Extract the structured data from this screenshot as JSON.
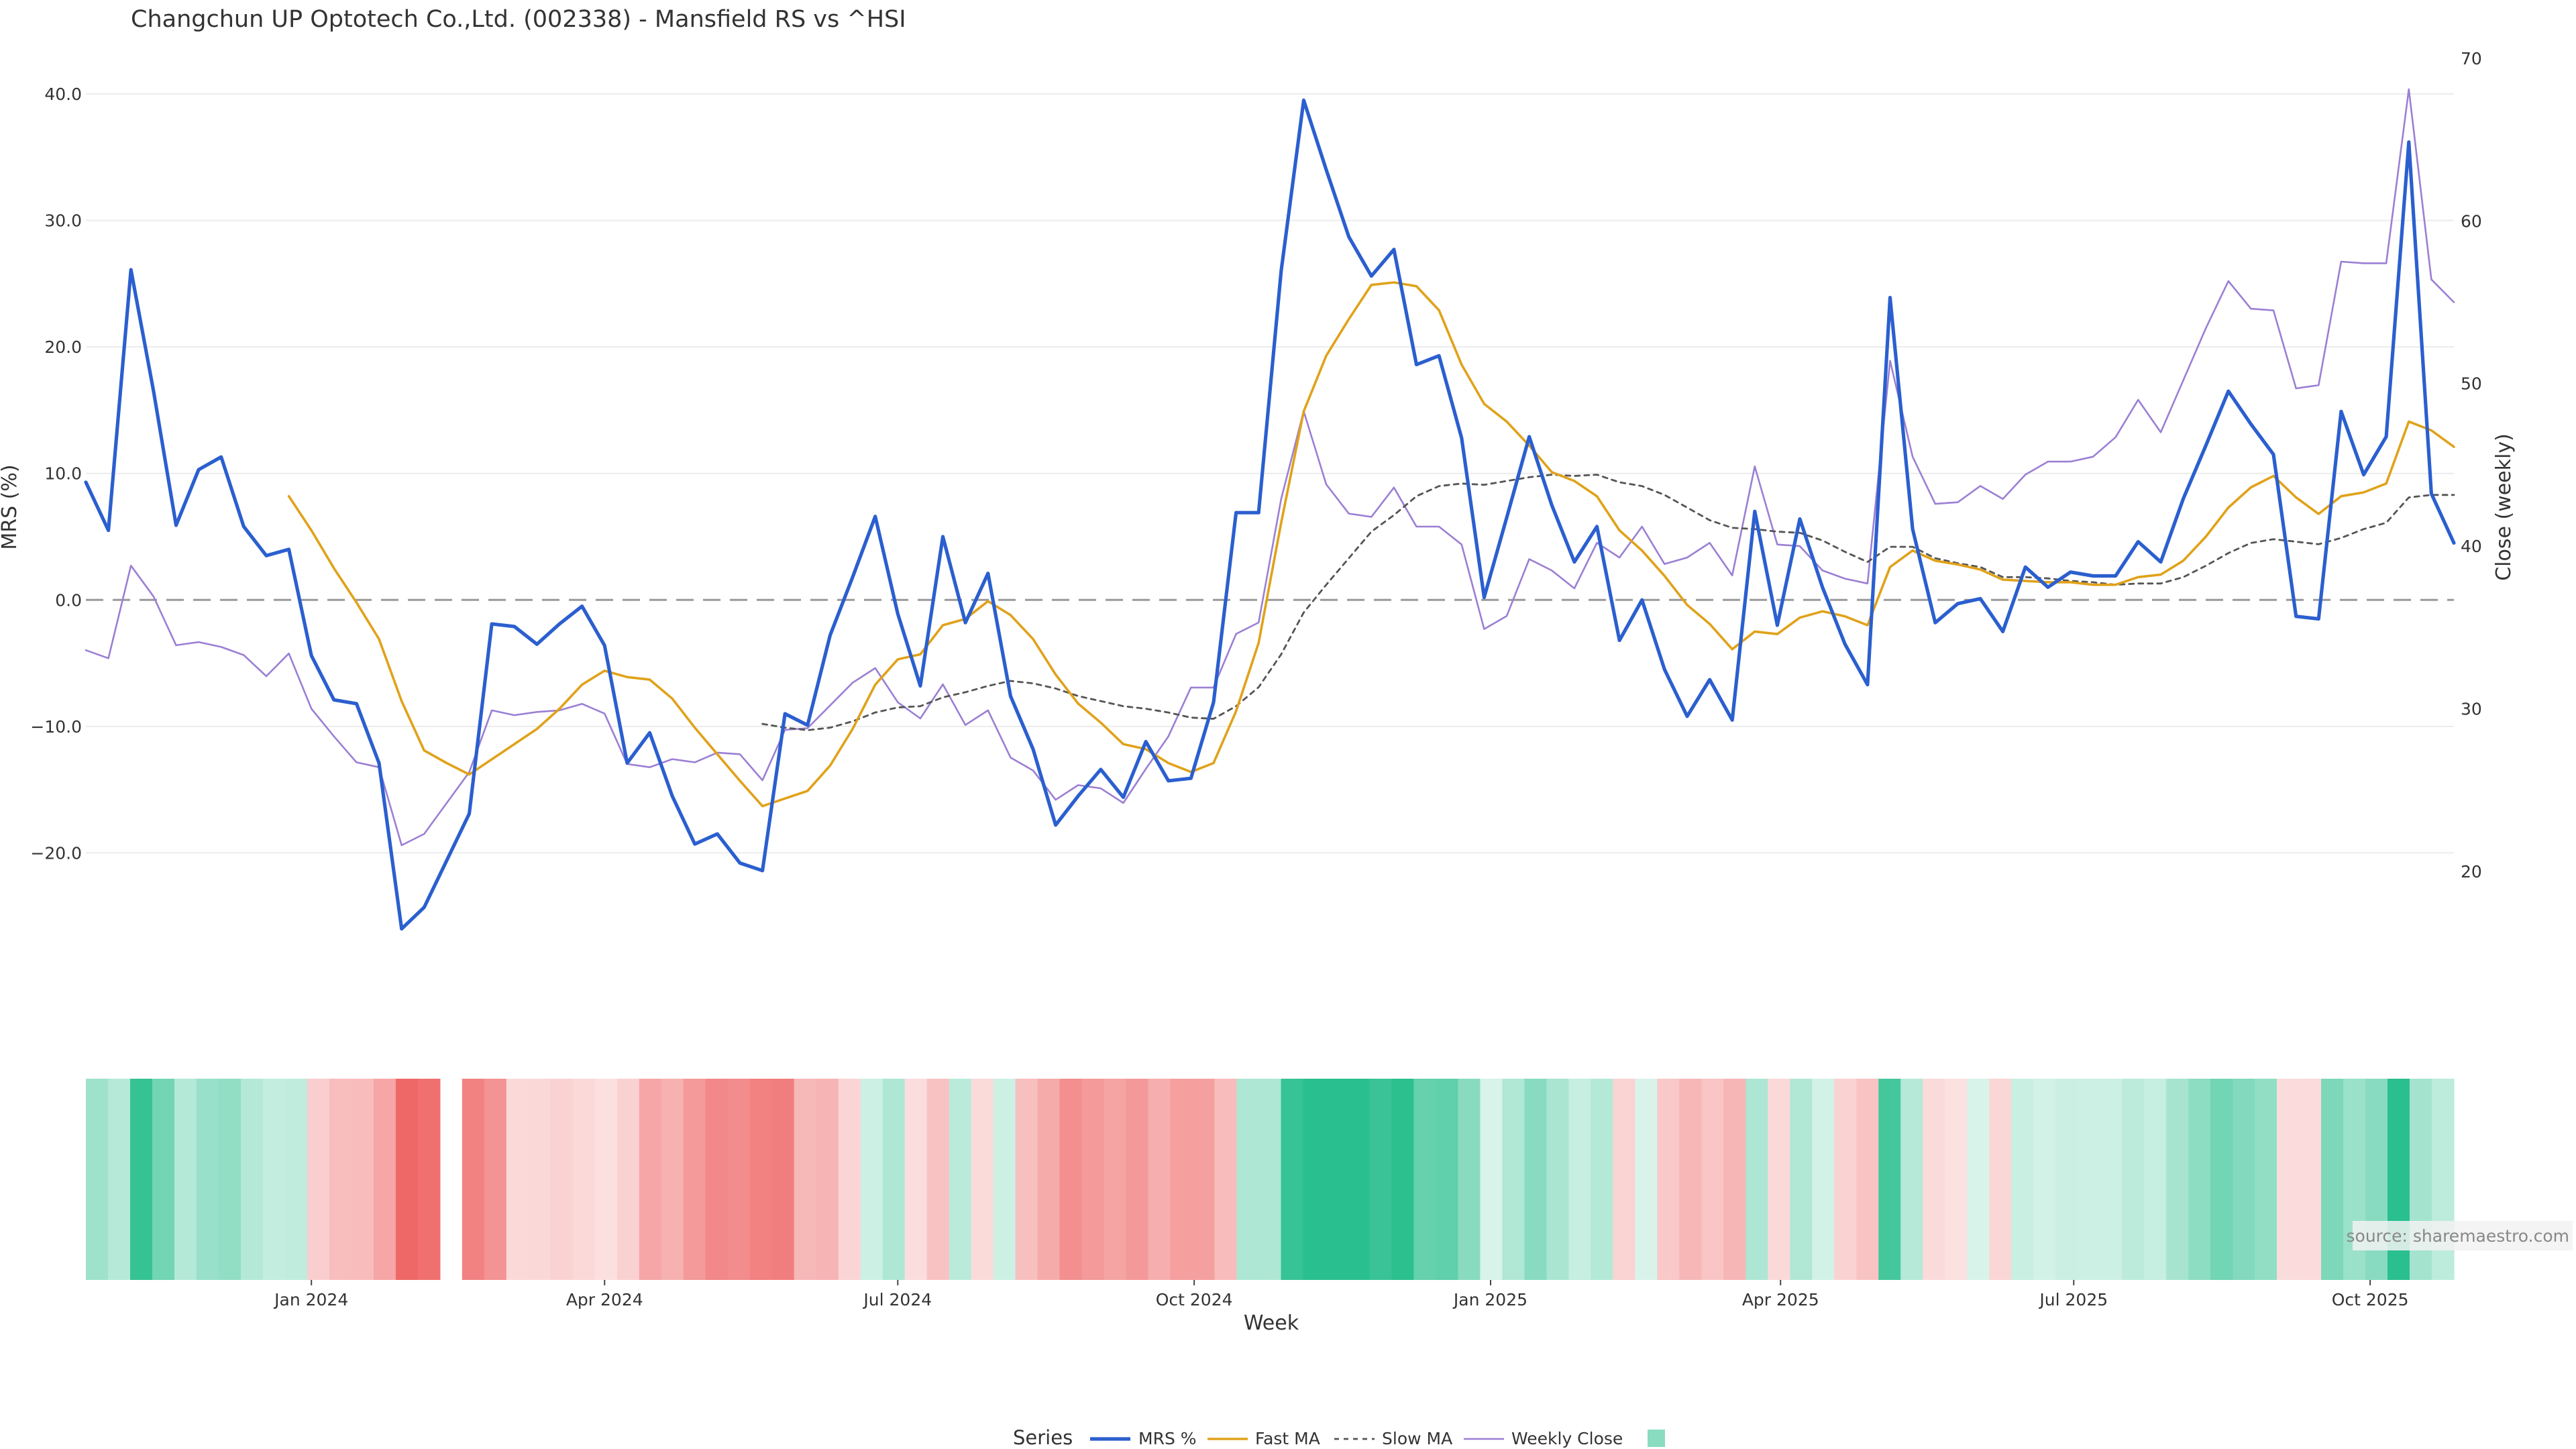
{
  "chart_data": {
    "type": "line",
    "title": "Changchun UP Optotech Co.,Ltd. (002338) - Mansfield RS vs ^HSI",
    "xlabel": "Week",
    "ylabel_left": "MRS (%)",
    "ylabel_right": "Close (weekly)",
    "source": "source: sharemaestro.com",
    "xlim": [
      "2023-10-23",
      "2025-10-27"
    ],
    "ylim_left": [
      -30,
      40
    ],
    "ylim_right": [
      15,
      70
    ],
    "left_ticks": [
      {
        "value": 40,
        "label": "40.0"
      },
      {
        "value": 30,
        "label": "30.0"
      },
      {
        "value": 20,
        "label": "20.0"
      },
      {
        "value": 10,
        "label": "10.0"
      },
      {
        "value": 0,
        "label": "0.0"
      },
      {
        "value": -10,
        "label": "−10.0"
      },
      {
        "value": -20,
        "label": "−20.0"
      }
    ],
    "right_ticks": [
      {
        "value": 70,
        "label": "70"
      },
      {
        "value": 60,
        "label": "60"
      },
      {
        "value": 50,
        "label": "50"
      },
      {
        "value": 40,
        "label": "40"
      },
      {
        "value": 30,
        "label": "30"
      },
      {
        "value": 20,
        "label": "20"
      }
    ],
    "x_ticks": [
      {
        "date": "2024-01-01",
        "label": "Jan 2024"
      },
      {
        "date": "2024-04-01",
        "label": "Apr 2024"
      },
      {
        "date": "2024-07-01",
        "label": "Jul 2024"
      },
      {
        "date": "2024-10-01",
        "label": "Oct 2024"
      },
      {
        "date": "2025-01-01",
        "label": "Jan 2025"
      },
      {
        "date": "2025-04-01",
        "label": "Apr 2025"
      },
      {
        "date": "2025-07-01",
        "label": "Jul 2025"
      },
      {
        "date": "2025-10-01",
        "label": "Oct 2025"
      }
    ],
    "start_date": "2023-10-23",
    "week_gap_index": 16,
    "colors": {
      "mrs": "#2b5fcf",
      "fast": "#e0a21a",
      "slow": "#555555",
      "close": "#9b7fd4",
      "zero_line": "#999999",
      "grid": "#ececec",
      "pos_strong": "#2abf8e",
      "neg_strong": "#ee5f5f"
    },
    "series": [
      {
        "name": "MRS %",
        "key": "mrs",
        "values": [
          9.3,
          5.5,
          26.1,
          16.5,
          5.9,
          10.3,
          11.3,
          5.8,
          3.5,
          4.0,
          -4.4,
          -7.9,
          -8.2,
          -12.9,
          -26.0,
          -24.3,
          -20.6,
          -16.9,
          -1.9,
          -2.1,
          -3.5,
          -1.9,
          -0.5,
          -3.6,
          -12.9,
          -10.5,
          -15.5,
          -19.3,
          -18.5,
          -20.8,
          -21.4,
          -9.0,
          -9.9,
          -2.8,
          1.8,
          6.6,
          -1.1,
          -6.8,
          5.0,
          -1.8,
          2.1,
          -7.6,
          -11.8,
          -17.8,
          -15.5,
          -13.4,
          -15.6,
          -11.2,
          -14.3,
          -14.1,
          -8.1,
          6.9,
          6.9,
          26.0,
          39.5,
          34.0,
          28.7,
          25.6,
          27.7,
          18.6,
          19.3,
          12.8,
          0.2,
          6.5,
          12.9,
          7.5,
          3.0,
          5.8,
          -3.2,
          0.0,
          -5.5,
          -9.2,
          -6.3,
          -9.5,
          7.0,
          -2.0,
          6.4,
          1.0,
          -3.5,
          -6.7,
          23.9,
          5.6,
          -1.8,
          -0.3,
          0.1,
          -2.5,
          2.6,
          1.0,
          2.2,
          1.9,
          1.9,
          4.6,
          3.0,
          8.0,
          12.2,
          16.5,
          13.9,
          11.5,
          -1.3,
          -1.5,
          14.9,
          9.9,
          12.9,
          36.2,
          8.4,
          4.5
        ]
      },
      {
        "name": "Fast MA",
        "key": "fast",
        "values": [
          null,
          null,
          null,
          null,
          null,
          null,
          null,
          null,
          null,
          8.2,
          5.5,
          2.5,
          -0.2,
          -3.1,
          -8.0,
          -11.9,
          -12.9,
          -13.8,
          -12.6,
          -11.4,
          -10.2,
          -8.6,
          -6.7,
          -5.6,
          -6.1,
          -6.3,
          -7.8,
          -10.1,
          -12.2,
          -14.3,
          -16.3,
          -15.7,
          -15.1,
          -13.1,
          -10.2,
          -6.7,
          -4.7,
          -4.3,
          -2.0,
          -1.5,
          -0.1,
          -1.2,
          -3.1,
          -5.9,
          -8.2,
          -9.7,
          -11.4,
          -11.8,
          -12.9,
          -13.6,
          -12.9,
          -8.8,
          -3.4,
          6.1,
          14.9,
          19.3,
          22.2,
          24.9,
          25.1,
          24.8,
          22.9,
          18.6,
          15.5,
          14.1,
          12.2,
          10.1,
          9.4,
          8.2,
          5.5,
          3.9,
          1.9,
          -0.4,
          -1.9,
          -3.9,
          -2.5,
          -2.7,
          -1.4,
          -0.9,
          -1.3,
          -2.0,
          2.6,
          3.9,
          3.1,
          2.8,
          2.4,
          1.6,
          1.5,
          1.4,
          1.4,
          1.2,
          1.2,
          1.8,
          2.0,
          3.1,
          5.0,
          7.3,
          8.9,
          9.8,
          8.1,
          6.8,
          8.2,
          8.5,
          9.2,
          14.1,
          13.4,
          12.1
        ]
      },
      {
        "name": "Slow MA",
        "key": "slow",
        "values": [
          null,
          null,
          null,
          null,
          null,
          null,
          null,
          null,
          null,
          null,
          null,
          null,
          null,
          null,
          null,
          null,
          null,
          null,
          null,
          null,
          null,
          null,
          null,
          null,
          null,
          null,
          null,
          null,
          null,
          null,
          -9.8,
          -10.1,
          -10.3,
          -10.1,
          -9.6,
          -8.9,
          -8.5,
          -8.4,
          -7.7,
          -7.3,
          -6.8,
          -6.4,
          -6.6,
          -7.0,
          -7.6,
          -8.0,
          -8.4,
          -8.6,
          -8.9,
          -9.3,
          -9.4,
          -8.4,
          -6.9,
          -4.3,
          -1.0,
          1.2,
          3.3,
          5.4,
          6.7,
          8.2,
          9.0,
          9.2,
          9.1,
          9.4,
          9.7,
          9.9,
          9.8,
          9.9,
          9.3,
          9.0,
          8.3,
          7.3,
          6.3,
          5.7,
          5.6,
          5.4,
          5.3,
          4.7,
          3.8,
          3.0,
          4.2,
          4.2,
          3.3,
          2.9,
          2.6,
          1.8,
          1.8,
          1.7,
          1.5,
          1.4,
          1.2,
          1.3,
          1.3,
          1.8,
          2.7,
          3.7,
          4.5,
          4.8,
          4.6,
          4.4,
          4.9,
          5.6,
          6.1,
          8.1,
          8.3,
          8.3
        ]
      },
      {
        "name": "Weekly Close",
        "key": "close",
        "values": [
          33.6,
          33.1,
          38.8,
          36.9,
          33.9,
          34.1,
          33.8,
          33.3,
          32.0,
          33.4,
          30.0,
          28.3,
          26.7,
          26.4,
          21.6,
          22.3,
          24.2,
          26.1,
          29.9,
          29.6,
          29.8,
          29.9,
          30.3,
          29.7,
          26.6,
          26.4,
          26.9,
          26.7,
          27.3,
          27.2,
          25.6,
          28.7,
          28.8,
          30.2,
          31.6,
          32.5,
          30.4,
          29.4,
          31.5,
          29.0,
          29.9,
          27.0,
          26.2,
          24.4,
          25.3,
          25.1,
          24.2,
          26.3,
          28.3,
          31.3,
          31.3,
          34.6,
          35.3,
          42.9,
          48.3,
          43.8,
          42.0,
          41.8,
          43.6,
          41.2,
          41.2,
          40.1,
          34.9,
          35.7,
          39.2,
          38.5,
          37.4,
          40.2,
          39.3,
          41.2,
          38.9,
          39.3,
          40.2,
          38.2,
          44.9,
          40.1,
          40.0,
          38.5,
          38.0,
          37.7,
          51.4,
          45.5,
          42.6,
          42.7,
          43.7,
          42.9,
          44.4,
          45.2,
          45.2,
          45.5,
          46.7,
          49.0,
          47.0,
          50.2,
          53.4,
          56.3,
          54.6,
          54.5,
          49.7,
          49.9,
          57.5,
          57.4,
          57.4,
          68.1,
          56.4,
          55.0
        ]
      }
    ],
    "heatmap": {
      "label": "MRS",
      "values": [
        9.3,
        5.5,
        26.1,
        16.5,
        5.9,
        10.3,
        11.3,
        5.8,
        3.5,
        4.0,
        -4.4,
        -7.9,
        -8.2,
        -12.9,
        -26.0,
        -24.3,
        null,
        -20.6,
        -16.9,
        -1.9,
        -2.1,
        -3.5,
        -1.9,
        -0.5,
        -3.6,
        -12.9,
        -10.5,
        -15.5,
        -19.3,
        -18.5,
        -20.8,
        -21.4,
        -9.0,
        -9.9,
        -2.8,
        1.8,
        6.6,
        -1.1,
        -6.8,
        5.0,
        -1.8,
        2.1,
        -7.6,
        -11.8,
        -17.8,
        -15.5,
        -13.4,
        -15.6,
        -11.2,
        -14.3,
        -14.1,
        -8.1,
        6.9,
        6.9,
        26.0,
        39.5,
        34.0,
        28.7,
        25.6,
        27.7,
        18.6,
        19.3,
        12.8,
        0.2,
        6.5,
        12.9,
        7.5,
        3.0,
        5.8,
        -3.2,
        0.0,
        -5.5,
        -9.2,
        -6.3,
        -9.5,
        7.0,
        -2.0,
        6.4,
        1.0,
        -3.5,
        -6.7,
        23.9,
        5.6,
        -1.8,
        -0.3,
        0.1,
        -2.5,
        2.6,
        1.0,
        2.2,
        1.9,
        1.9,
        4.6,
        3.0,
        8.0,
        12.2,
        16.5,
        13.9,
        11.5,
        -1.3,
        -1.5,
        14.9,
        9.9,
        12.9,
        36.2,
        8.4,
        4.5
      ]
    },
    "legend": {
      "title": "Series",
      "items": [
        "MRS %",
        "Fast MA",
        "Slow MA",
        "Weekly Close",
        ""
      ]
    }
  }
}
